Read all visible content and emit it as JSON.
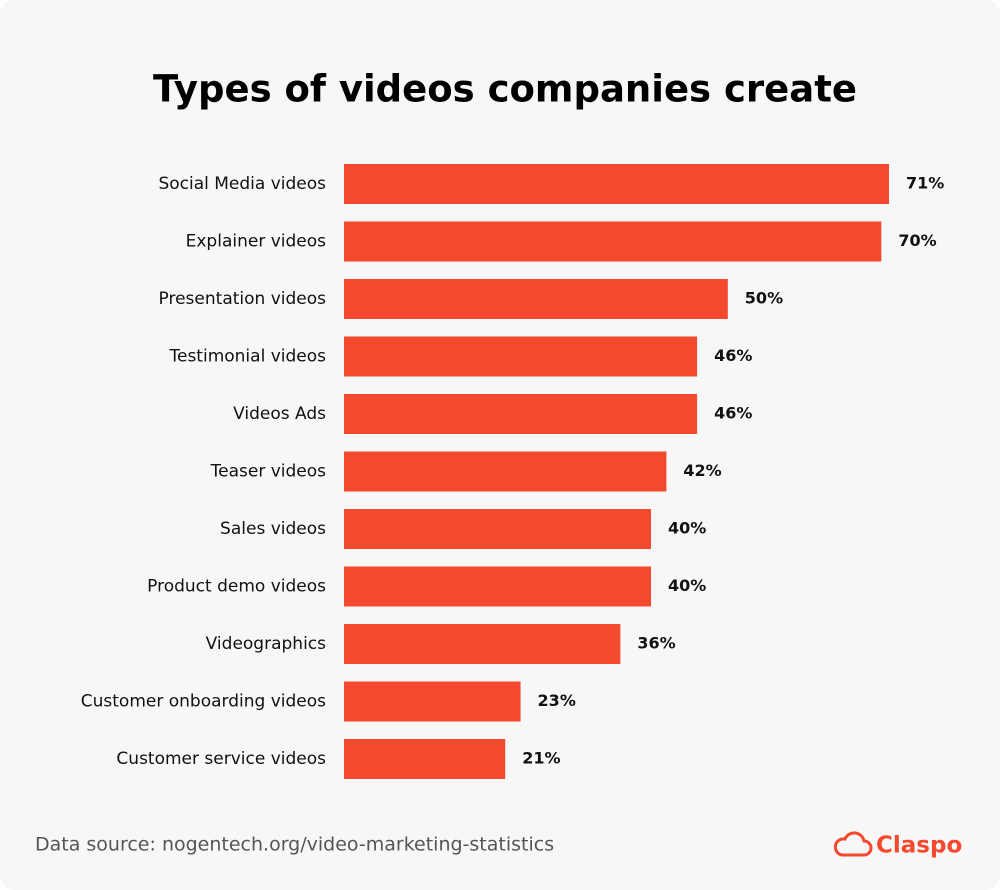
{
  "chart_data": {
    "type": "bar",
    "orientation": "horizontal",
    "title": "Types of videos companies create",
    "categories": [
      "Social Media videos",
      "Explainer videos",
      "Presentation videos",
      "Testimonial videos",
      "Videos Ads",
      "Teaser videos",
      "Sales videos",
      "Product demo videos",
      "Videographics",
      "Customer onboarding videos",
      "Customer service videos"
    ],
    "values": [
      71,
      70,
      50,
      46,
      46,
      42,
      40,
      40,
      36,
      23,
      21
    ],
    "value_labels": [
      "71%",
      "70%",
      "50%",
      "46%",
      "46%",
      "42%",
      "40%",
      "40%",
      "36%",
      "23%",
      "21%"
    ],
    "color": "#f34a2f",
    "source": "Data source: nogentech.org/video-marketing-statistics",
    "brand": "Claspo"
  }
}
